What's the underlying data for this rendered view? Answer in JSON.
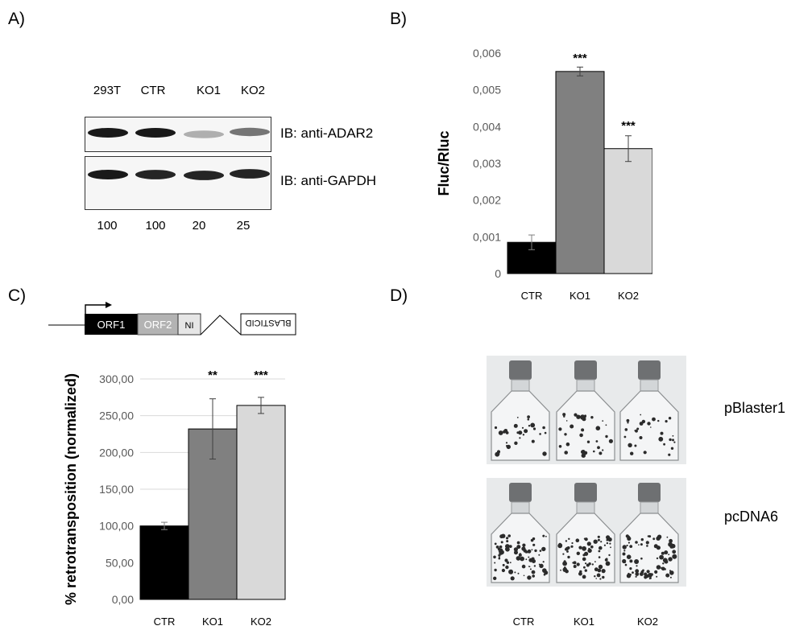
{
  "panels": {
    "A": {
      "label": "A)",
      "lanes": [
        "293T",
        "CTR",
        "KO1",
        "KO2"
      ],
      "blots": [
        {
          "label": "IB: anti-ADAR2",
          "band_intensity": [
            1.0,
            1.0,
            0.35,
            0.6
          ]
        },
        {
          "label": "IB: anti-GAPDH",
          "band_intensity": [
            1.0,
            0.95,
            0.95,
            0.95
          ]
        }
      ],
      "quantification": [
        "100",
        "100",
        "20",
        "25"
      ]
    },
    "B": {
      "label": "B)"
    },
    "C": {
      "label": "C)",
      "construct": {
        "orf1": "ORF1",
        "orf2": "ORF2",
        "ni": "NI",
        "blasticid": "BLASTICID"
      }
    },
    "D": {
      "label": "D)",
      "rows": [
        "pBlaster1",
        "pcDNA6"
      ],
      "categories": [
        "CTR",
        "KO1",
        "KO2"
      ]
    }
  },
  "chart_data": [
    {
      "type": "bar",
      "panel": "B",
      "categories": [
        "CTR",
        "KO1",
        "KO2"
      ],
      "values": [
        0.00085,
        0.0055,
        0.0034
      ],
      "errors": [
        0.0002,
        0.00012,
        0.00035
      ],
      "significance": [
        "",
        "***",
        "***"
      ],
      "colors": [
        "#000000",
        "#808080",
        "#d9d9d9"
      ],
      "ylabel": "Fluc/Rluc",
      "ylim": [
        0,
        0.006
      ],
      "yticks": [
        "0",
        "0,001",
        "0,002",
        "0,003",
        "0,004",
        "0,005",
        "0,006"
      ],
      "grid": false
    },
    {
      "type": "bar",
      "panel": "C",
      "categories": [
        "CTR",
        "KO1",
        "KO2"
      ],
      "values": [
        100,
        232,
        264
      ],
      "errors": [
        5,
        41,
        11
      ],
      "significance": [
        "",
        "**",
        "***"
      ],
      "colors": [
        "#000000",
        "#808080",
        "#d9d9d9"
      ],
      "ylabel": "% retrotransposition (normalized)",
      "ylim": [
        0,
        300
      ],
      "yticks": [
        "0,00",
        "50,00",
        "100,00",
        "150,00",
        "200,00",
        "250,00",
        "300,00"
      ],
      "grid": true
    }
  ]
}
